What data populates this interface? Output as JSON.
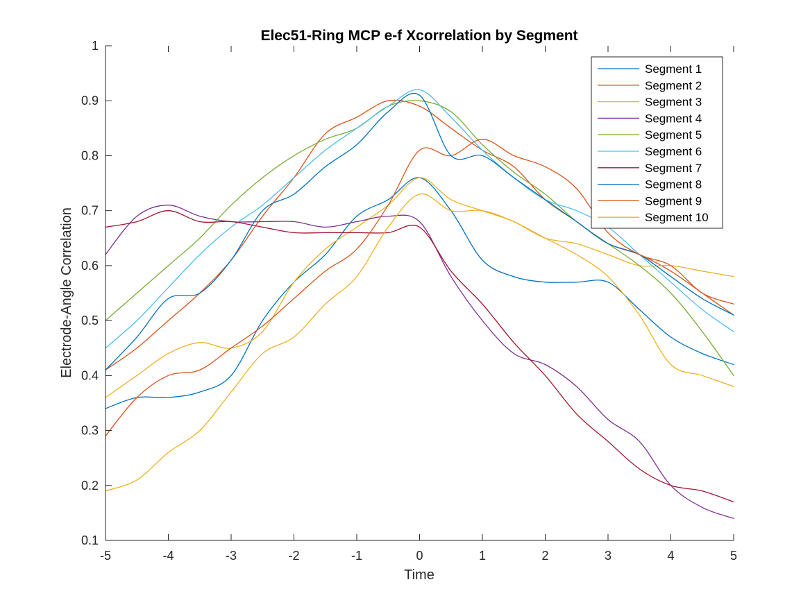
{
  "chart_data": {
    "type": "line",
    "title": "Elec51-Ring MCP e-f Xcorrelation by Segment",
    "xlabel": "Time",
    "ylabel": "Electrode-Angle Correlation",
    "xlim": [
      -5,
      5
    ],
    "ylim": [
      0.1,
      1
    ],
    "xticks": [
      -5,
      -4,
      -3,
      -2,
      -1,
      0,
      1,
      2,
      3,
      4,
      5
    ],
    "yticks": [
      0.1,
      0.2,
      0.3,
      0.4,
      0.5,
      0.6,
      0.7,
      0.8,
      0.9,
      1
    ],
    "grid": false,
    "legend_position": "top-right",
    "x": [
      -5,
      -4.5,
      -4,
      -3.5,
      -3,
      -2.5,
      -2,
      -1.5,
      -1,
      -0.5,
      0,
      0.5,
      1,
      1.5,
      2,
      2.5,
      3,
      3.5,
      4,
      4.5,
      5
    ],
    "series": [
      {
        "name": "Segment 1",
        "color": "#0072BD",
        "values": [
          0.34,
          0.36,
          0.36,
          0.37,
          0.4,
          0.5,
          0.57,
          0.62,
          0.69,
          0.72,
          0.76,
          0.7,
          0.61,
          0.58,
          0.57,
          0.57,
          0.57,
          0.52,
          0.47,
          0.44,
          0.42
        ]
      },
      {
        "name": "Segment 2",
        "color": "#D95319",
        "values": [
          0.41,
          0.45,
          0.5,
          0.55,
          0.61,
          0.69,
          0.76,
          0.84,
          0.87,
          0.9,
          0.89,
          0.85,
          0.81,
          0.78,
          0.72,
          0.68,
          0.64,
          0.62,
          0.59,
          0.55,
          0.51
        ]
      },
      {
        "name": "Segment 3",
        "color": "#EDB120",
        "values": [
          0.36,
          0.4,
          0.44,
          0.46,
          0.45,
          0.48,
          0.57,
          0.63,
          0.67,
          0.71,
          0.76,
          0.72,
          0.7,
          0.68,
          0.65,
          0.64,
          0.62,
          0.6,
          0.6,
          0.59,
          0.58
        ]
      },
      {
        "name": "Segment 4",
        "color": "#7E2F8E",
        "values": [
          0.62,
          0.69,
          0.71,
          0.69,
          0.68,
          0.68,
          0.68,
          0.67,
          0.68,
          0.69,
          0.68,
          0.58,
          0.5,
          0.44,
          0.42,
          0.38,
          0.32,
          0.28,
          0.2,
          0.16,
          0.14
        ]
      },
      {
        "name": "Segment 5",
        "color": "#77AC30",
        "values": [
          0.5,
          0.55,
          0.6,
          0.65,
          0.71,
          0.76,
          0.8,
          0.83,
          0.85,
          0.89,
          0.9,
          0.88,
          0.82,
          0.77,
          0.73,
          0.68,
          0.64,
          0.6,
          0.55,
          0.48,
          0.4
        ]
      },
      {
        "name": "Segment 6",
        "color": "#4DBEEE",
        "values": [
          0.45,
          0.5,
          0.56,
          0.62,
          0.67,
          0.71,
          0.76,
          0.81,
          0.85,
          0.89,
          0.92,
          0.87,
          0.81,
          0.76,
          0.72,
          0.7,
          0.67,
          0.62,
          0.57,
          0.52,
          0.48
        ]
      },
      {
        "name": "Segment 7",
        "color": "#A2142F",
        "values": [
          0.67,
          0.68,
          0.7,
          0.68,
          0.68,
          0.67,
          0.66,
          0.66,
          0.66,
          0.66,
          0.67,
          0.59,
          0.53,
          0.46,
          0.4,
          0.33,
          0.28,
          0.23,
          0.2,
          0.19,
          0.17
        ]
      },
      {
        "name": "Segment 8",
        "color": "#0072BD",
        "values": [
          0.41,
          0.47,
          0.54,
          0.55,
          0.61,
          0.7,
          0.73,
          0.78,
          0.82,
          0.88,
          0.91,
          0.8,
          0.8,
          0.76,
          0.72,
          0.68,
          0.64,
          0.62,
          0.58,
          0.54,
          0.51
        ]
      },
      {
        "name": "Segment 9",
        "color": "#D95319",
        "values": [
          0.29,
          0.36,
          0.4,
          0.41,
          0.45,
          0.49,
          0.54,
          0.59,
          0.63,
          0.71,
          0.81,
          0.8,
          0.83,
          0.8,
          0.78,
          0.74,
          0.66,
          0.62,
          0.6,
          0.55,
          0.53
        ]
      },
      {
        "name": "Segment 10",
        "color": "#EDB120",
        "values": [
          0.19,
          0.21,
          0.26,
          0.3,
          0.37,
          0.44,
          0.47,
          0.53,
          0.58,
          0.67,
          0.73,
          0.7,
          0.7,
          0.68,
          0.65,
          0.62,
          0.58,
          0.51,
          0.42,
          0.4,
          0.38
        ]
      }
    ]
  }
}
